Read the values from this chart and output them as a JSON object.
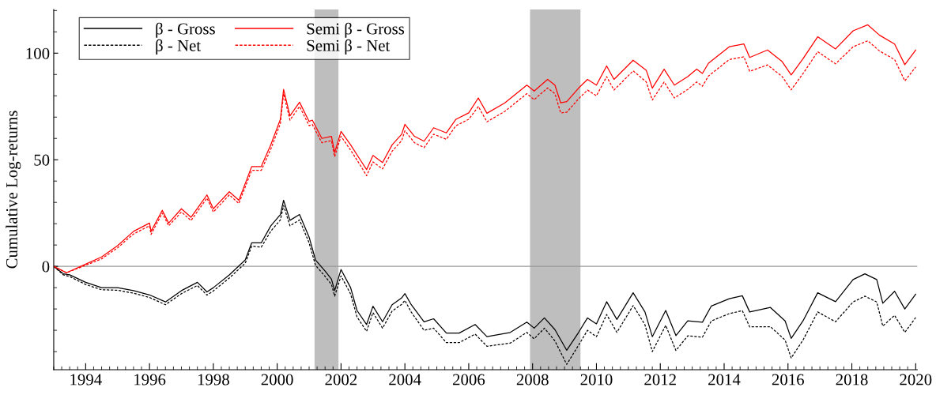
{
  "chart_data": {
    "type": "line",
    "ylabel": "Cumulative Log-returns",
    "xlim": [
      1993.0,
      2020.05
    ],
    "ylim": [
      -48.5,
      120.5
    ],
    "xticks": [
      {
        "value": 1993.0,
        "label": null
      },
      {
        "value": 1993.25,
        "label": null
      },
      {
        "value": 1993.5,
        "label": null
      },
      {
        "value": 1993.75,
        "label": null
      },
      1994,
      {
        "value": 1994.25,
        "label": null
      },
      {
        "value": 1994.5,
        "label": null
      },
      {
        "value": 1994.75,
        "label": null
      },
      {
        "value": 1995.0,
        "label": null
      },
      {
        "value": 1995.25,
        "label": null
      },
      {
        "value": 1995.5,
        "label": null
      },
      {
        "value": 1995.75,
        "label": null
      },
      1996,
      {
        "value": 1996.25,
        "label": null
      },
      {
        "value": 1996.5,
        "label": null
      },
      {
        "value": 1996.75,
        "label": null
      },
      {
        "value": 1997.0,
        "label": null
      },
      {
        "value": 1997.25,
        "label": null
      },
      {
        "value": 1997.5,
        "label": null
      },
      {
        "value": 1997.75,
        "label": null
      },
      1998,
      {
        "value": 1998.25,
        "label": null
      },
      {
        "value": 1998.5,
        "label": null
      },
      {
        "value": 1998.75,
        "label": null
      },
      {
        "value": 1999.0,
        "label": null
      },
      {
        "value": 1999.25,
        "label": null
      },
      {
        "value": 1999.5,
        "label": null
      },
      {
        "value": 1999.75,
        "label": null
      },
      2000,
      {
        "value": 2000.25,
        "label": null
      },
      {
        "value": 2000.5,
        "label": null
      },
      {
        "value": 2000.75,
        "label": null
      },
      {
        "value": 2001.0,
        "label": null
      },
      {
        "value": 2001.25,
        "label": null
      },
      {
        "value": 2001.5,
        "label": null
      },
      {
        "value": 2001.75,
        "label": null
      },
      2002,
      {
        "value": 2002.25,
        "label": null
      },
      {
        "value": 2002.5,
        "label": null
      },
      {
        "value": 2002.75,
        "label": null
      },
      {
        "value": 2003.0,
        "label": null
      },
      {
        "value": 2003.25,
        "label": null
      },
      {
        "value": 2003.5,
        "label": null
      },
      {
        "value": 2003.75,
        "label": null
      },
      2004,
      {
        "value": 2004.25,
        "label": null
      },
      {
        "value": 2004.5,
        "label": null
      },
      {
        "value": 2004.75,
        "label": null
      },
      {
        "value": 2005.0,
        "label": null
      },
      {
        "value": 2005.25,
        "label": null
      },
      {
        "value": 2005.5,
        "label": null
      },
      {
        "value": 2005.75,
        "label": null
      },
      2006,
      {
        "value": 2006.25,
        "label": null
      },
      {
        "value": 2006.5,
        "label": null
      },
      {
        "value": 2006.75,
        "label": null
      },
      {
        "value": 2007.0,
        "label": null
      },
      {
        "value": 2007.25,
        "label": null
      },
      {
        "value": 2007.5,
        "label": null
      },
      {
        "value": 2007.75,
        "label": null
      },
      2008,
      {
        "value": 2008.25,
        "label": null
      },
      {
        "value": 2008.5,
        "label": null
      },
      {
        "value": 2008.75,
        "label": null
      },
      {
        "value": 2009.0,
        "label": null
      },
      {
        "value": 2009.25,
        "label": null
      },
      {
        "value": 2009.5,
        "label": null
      },
      {
        "value": 2009.75,
        "label": null
      },
      2010,
      {
        "value": 2010.25,
        "label": null
      },
      {
        "value": 2010.5,
        "label": null
      },
      {
        "value": 2010.75,
        "label": null
      },
      {
        "value": 2011.0,
        "label": null
      },
      {
        "value": 2011.25,
        "label": null
      },
      {
        "value": 2011.5,
        "label": null
      },
      {
        "value": 2011.75,
        "label": null
      },
      2012,
      {
        "value": 2012.25,
        "label": null
      },
      {
        "value": 2012.5,
        "label": null
      },
      {
        "value": 2012.75,
        "label": null
      },
      {
        "value": 2013.0,
        "label": null
      },
      {
        "value": 2013.25,
        "label": null
      },
      {
        "value": 2013.5,
        "label": null
      },
      {
        "value": 2013.75,
        "label": null
      },
      2014,
      {
        "value": 2014.25,
        "label": null
      },
      {
        "value": 2014.5,
        "label": null
      },
      {
        "value": 2014.75,
        "label": null
      },
      {
        "value": 2015.0,
        "label": null
      },
      {
        "value": 2015.25,
        "label": null
      },
      {
        "value": 2015.5,
        "label": null
      },
      {
        "value": 2015.75,
        "label": null
      },
      2016,
      {
        "value": 2016.25,
        "label": null
      },
      {
        "value": 2016.5,
        "label": null
      },
      {
        "value": 2016.75,
        "label": null
      },
      {
        "value": 2017.0,
        "label": null
      },
      {
        "value": 2017.25,
        "label": null
      },
      {
        "value": 2017.5,
        "label": null
      },
      {
        "value": 2017.75,
        "label": null
      },
      2018,
      {
        "value": 2018.25,
        "label": null
      },
      {
        "value": 2018.5,
        "label": null
      },
      {
        "value": 2018.75,
        "label": null
      },
      {
        "value": 2019.0,
        "label": null
      },
      {
        "value": 2019.25,
        "label": null
      },
      {
        "value": 2019.5,
        "label": null
      },
      {
        "value": 2019.75,
        "label": null
      },
      2020
    ],
    "yticks": [
      {
        "value": -40,
        "label": null
      },
      {
        "value": -30,
        "label": null
      },
      {
        "value": -20,
        "label": null
      },
      {
        "value": -10,
        "label": null
      },
      0,
      {
        "value": 10,
        "label": null
      },
      {
        "value": 20,
        "label": null
      },
      {
        "value": 30,
        "label": null
      },
      {
        "value": 40,
        "label": null
      },
      50,
      {
        "value": 60,
        "label": null
      },
      {
        "value": 70,
        "label": null
      },
      {
        "value": 80,
        "label": null
      },
      {
        "value": 90,
        "label": null
      },
      100,
      {
        "value": 110,
        "label": null
      },
      {
        "value": 120,
        "label": null
      }
    ],
    "grid": false,
    "legend": "top left",
    "marker": "none",
    "ref_lines": [
      {
        "axis": "y",
        "value": 0,
        "color": "#999999",
        "line_style": "solid"
      }
    ],
    "bands": [
      {
        "axis": "x",
        "from": 2001.17,
        "to": 2001.92,
        "color": "#bebebe"
      },
      {
        "axis": "x",
        "from": 2007.92,
        "to": 2009.5,
        "color": "#bebebe"
      }
    ],
    "series": [
      {
        "name": "β - Gross",
        "color": "#000000",
        "line_style": "solid",
        "x": [
          1993.0,
          1993.3,
          1993.5,
          1994.0,
          1994.5,
          1995.0,
          1995.5,
          1996.0,
          1996.5,
          1997.0,
          1997.5,
          1997.8,
          1998.0,
          1998.5,
          1999.0,
          1999.2,
          1999.5,
          1999.8,
          2000.1,
          2000.2,
          2000.4,
          2000.7,
          2001.0,
          2001.2,
          2001.5,
          2001.7,
          2001.8,
          2002.0,
          2002.3,
          2002.5,
          2002.8,
          2003.0,
          2003.3,
          2003.6,
          2003.9,
          2004.0,
          2004.2,
          2004.6,
          2004.9,
          2005.3,
          2005.7,
          2006.2,
          2006.57,
          2007.3,
          2007.82,
          2008.05,
          2008.37,
          2008.7,
          2009.07,
          2009.44,
          2009.72,
          2010.0,
          2010.32,
          2010.64,
          2011.15,
          2011.52,
          2011.75,
          2012.17,
          2012.49,
          2012.86,
          2013.32,
          2013.6,
          2014.16,
          2014.57,
          2014.8,
          2015.45,
          2015.91,
          2016.1,
          2016.47,
          2016.93,
          2017.49,
          2018.04,
          2018.41,
          2018.78,
          2018.97,
          2019.34,
          2019.66,
          2020.0
        ],
        "values": [
          0,
          -3.5,
          -4,
          -7.5,
          -10,
          -10,
          -11.4,
          -13.4,
          -16.7,
          -11.4,
          -7.5,
          -12,
          -10,
          -4,
          3,
          11,
          11,
          19,
          24.3,
          31,
          21.6,
          24.3,
          13.7,
          3,
          -2.2,
          -6,
          -11.4,
          -1.5,
          -10,
          -20.7,
          -27.3,
          -18.7,
          -26,
          -18,
          -14.8,
          -12.8,
          -18,
          -26,
          -24.6,
          -31.3,
          -31.3,
          -27.3,
          -33,
          -31,
          -26.2,
          -29,
          -24.2,
          -29.7,
          -39.4,
          -31,
          -24.2,
          -27,
          -16.6,
          -24.9,
          -12.4,
          -21.4,
          -33,
          -20.7,
          -32.5,
          -25.6,
          -26.2,
          -18.6,
          -15.2,
          -13.8,
          -21.4,
          -19.3,
          -25.6,
          -33.8,
          -25.6,
          -12.4,
          -16.6,
          -6.2,
          -3.5,
          -6.2,
          -17.3,
          -11.7,
          -20,
          -13.1
        ]
      },
      {
        "name": "β - Net",
        "color": "#000000",
        "line_style": "dashed",
        "x": [
          1993.0,
          1993.3,
          1993.5,
          1994.0,
          1994.5,
          1995.0,
          1995.5,
          1996.0,
          1996.5,
          1997.0,
          1997.5,
          1997.8,
          1998.0,
          1998.5,
          1999.0,
          1999.2,
          1999.5,
          1999.8,
          2000.1,
          2000.2,
          2000.4,
          2000.7,
          2001.0,
          2001.2,
          2001.5,
          2001.7,
          2001.8,
          2002.0,
          2002.3,
          2002.5,
          2002.8,
          2003.0,
          2003.3,
          2003.6,
          2003.9,
          2004.0,
          2004.2,
          2004.6,
          2004.9,
          2005.3,
          2005.7,
          2006.2,
          2006.57,
          2007.3,
          2007.82,
          2008.05,
          2008.37,
          2008.7,
          2009.07,
          2009.44,
          2009.72,
          2010.0,
          2010.32,
          2010.64,
          2011.15,
          2011.52,
          2011.75,
          2012.17,
          2012.49,
          2012.86,
          2013.32,
          2013.6,
          2014.16,
          2014.57,
          2014.8,
          2015.45,
          2015.91,
          2016.1,
          2016.47,
          2016.93,
          2017.49,
          2018.04,
          2018.41,
          2018.78,
          2018.97,
          2019.34,
          2019.66,
          2020.0
        ],
        "values": [
          0,
          -4,
          -4.8,
          -8.5,
          -11,
          -11.2,
          -12.6,
          -14.6,
          -18,
          -12.8,
          -9,
          -13.5,
          -11.5,
          -5.5,
          1.5,
          9.5,
          9,
          16.5,
          21.8,
          28.5,
          19,
          21.8,
          11,
          0.5,
          -4.7,
          -8.5,
          -14,
          -4.5,
          -13,
          -23.7,
          -30.5,
          -21.7,
          -29,
          -21,
          -17.8,
          -16,
          -21.5,
          -30,
          -29,
          -35.8,
          -35.8,
          -31.8,
          -37.5,
          -36,
          -31,
          -34,
          -29,
          -35,
          -46,
          -37,
          -30,
          -33,
          -22.6,
          -31,
          -18.4,
          -27.4,
          -40,
          -27.7,
          -39.5,
          -32.6,
          -33.2,
          -25.6,
          -22.2,
          -20.8,
          -28.4,
          -28.3,
          -34.6,
          -43,
          -34.6,
          -21.4,
          -26,
          -16.7,
          -14,
          -16.7,
          -28,
          -23,
          -31,
          -24
        ]
      },
      {
        "name": "Semi β - Gross",
        "color": "#ff0000",
        "line_style": "solid",
        "x": [
          1993.0,
          1993.4,
          1994.0,
          1994.5,
          1995.0,
          1995.5,
          1996.0,
          1996.05,
          1996.4,
          1996.6,
          1997.0,
          1997.3,
          1997.8,
          1998.0,
          1998.5,
          1998.8,
          1999.2,
          1999.5,
          1999.8,
          2000.1,
          2000.2,
          2000.4,
          2000.7,
          2001.0,
          2001.1,
          2001.4,
          2001.7,
          2001.8,
          2002.0,
          2002.3,
          2002.6,
          2002.8,
          2003.0,
          2003.3,
          2003.6,
          2003.9,
          2004.0,
          2004.3,
          2004.6,
          2004.9,
          2005.3,
          2005.6,
          2006.0,
          2006.3,
          2006.57,
          2007.13,
          2007.82,
          2008.05,
          2008.47,
          2008.7,
          2008.88,
          2009.07,
          2009.44,
          2009.72,
          2010.0,
          2010.32,
          2010.55,
          2011.15,
          2011.56,
          2011.75,
          2012.12,
          2012.44,
          2012.86,
          2013.14,
          2013.32,
          2013.51,
          2014.16,
          2014.62,
          2014.8,
          2015.36,
          2015.82,
          2016.1,
          2016.47,
          2016.93,
          2017.49,
          2018.04,
          2018.5,
          2018.87,
          2019.34,
          2019.66,
          2020.0
        ],
        "values": [
          0,
          -3,
          1,
          4.4,
          9.7,
          16.4,
          20.3,
          16.4,
          26.3,
          20.3,
          27,
          23,
          33.5,
          27,
          35,
          31,
          46.8,
          46.8,
          57,
          69,
          83,
          70.6,
          77,
          68,
          68.6,
          60,
          61,
          53.4,
          63.3,
          57,
          50,
          45.4,
          52,
          48.7,
          57,
          62,
          66.6,
          61,
          58.7,
          65,
          62.6,
          69,
          72,
          79,
          71.8,
          76.7,
          85,
          82.2,
          87.7,
          85,
          76.7,
          77.3,
          83.6,
          87.7,
          85,
          94,
          87.7,
          96.7,
          92,
          83.6,
          92.5,
          85,
          89,
          92.5,
          90.5,
          95.3,
          103,
          104.3,
          98,
          101.5,
          96,
          89.8,
          97.4,
          107.7,
          102,
          110.5,
          113.3,
          108.4,
          104.3,
          94.6,
          101.5
        ]
      },
      {
        "name": "Semi β - Net",
        "color": "#ff0000",
        "line_style": "dashed",
        "x": [
          1993.0,
          1993.4,
          1994.0,
          1994.5,
          1995.0,
          1995.5,
          1996.0,
          1996.05,
          1996.4,
          1996.6,
          1997.0,
          1997.3,
          1997.8,
          1998.0,
          1998.5,
          1998.8,
          1999.2,
          1999.5,
          1999.8,
          2000.1,
          2000.2,
          2000.4,
          2000.7,
          2001.0,
          2001.1,
          2001.4,
          2001.7,
          2001.8,
          2002.0,
          2002.3,
          2002.6,
          2002.8,
          2003.0,
          2003.3,
          2003.6,
          2003.9,
          2004.0,
          2004.3,
          2004.6,
          2004.9,
          2005.3,
          2005.6,
          2006.0,
          2006.3,
          2006.57,
          2007.13,
          2007.82,
          2008.05,
          2008.47,
          2008.7,
          2008.88,
          2009.07,
          2009.44,
          2009.72,
          2010.0,
          2010.32,
          2010.55,
          2011.15,
          2011.56,
          2011.75,
          2012.12,
          2012.44,
          2012.86,
          2013.14,
          2013.32,
          2013.51,
          2014.16,
          2014.62,
          2014.8,
          2015.36,
          2015.82,
          2016.1,
          2016.47,
          2016.93,
          2017.49,
          2018.04,
          2018.5,
          2018.87,
          2019.34,
          2019.66,
          2020.0
        ],
        "values": [
          0,
          -3,
          0.5,
          3.5,
          8.7,
          15.2,
          19,
          15,
          25,
          19,
          25.5,
          21.5,
          32,
          25.5,
          33.5,
          29.5,
          45,
          45,
          55,
          67,
          81,
          68.6,
          75,
          66,
          66.6,
          58,
          59,
          51.4,
          61,
          54.5,
          47.5,
          42.5,
          49,
          45.7,
          54,
          59,
          63.6,
          58,
          55.7,
          62,
          59.6,
          66,
          69,
          75,
          67.8,
          72.7,
          81,
          78.2,
          83.7,
          81,
          72,
          72.3,
          78.6,
          82.7,
          80,
          89,
          82.7,
          91.7,
          86.5,
          78,
          86.5,
          79,
          83,
          86.5,
          84.5,
          89.3,
          97,
          98.3,
          91.5,
          94.5,
          89,
          82.8,
          90.4,
          100.7,
          95,
          103,
          105.8,
          101,
          97,
          87,
          93.5
        ]
      }
    ]
  }
}
